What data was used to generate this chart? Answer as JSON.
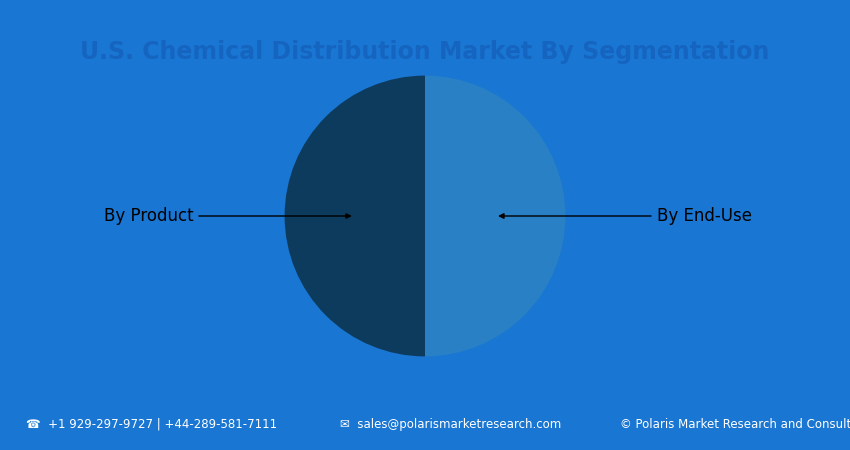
{
  "title": "U.S. Chemical Distribution Market By Segmentation",
  "title_color": "#1565C0",
  "title_fontsize": 17,
  "border_color": "#1976D2",
  "background_color": "#FFFFFF",
  "inner_bg_color": "#EAF4FB",
  "slices": [
    {
      "label": "By Product",
      "value": 50,
      "color": "#0D3B5E"
    },
    {
      "label": "By End-Use",
      "value": 50,
      "color": "#2980C4"
    }
  ],
  "annotation_fontsize": 12,
  "footer_fontsize": 8.5,
  "footer_color": "#FFFFFF",
  "footer_phone": "☎  +1 929-297-9727 | +44-289-581-7111",
  "footer_email": "✉  sales@polarismarketresearch.com",
  "footer_copy": "© Polaris Market Research and Consulting LLP"
}
